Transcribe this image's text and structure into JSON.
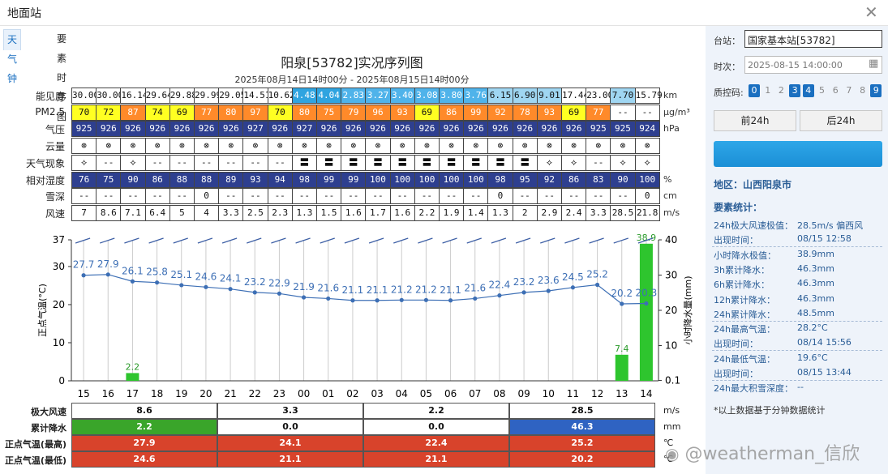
{
  "window": {
    "title": "地面站"
  },
  "tabs": [
    {
      "label": "天气钟"
    },
    {
      "label": "要素时序图"
    }
  ],
  "chart": {
    "title": "阳泉[53782]实况序列图",
    "subtitle": "2025年08月14日14时00分 - 2025年08月15日14时00分"
  },
  "rows": {
    "labels": [
      "能见度",
      "PM2.5",
      "气压",
      "云量",
      "天气现象",
      "相对湿度",
      "雪深",
      "风速"
    ],
    "units": [
      "km",
      "μg/m³",
      "hPa",
      "",
      "",
      "%",
      "cm",
      "m/s"
    ],
    "visibility": [
      "30.00",
      "30.00",
      "16.14",
      "29.64",
      "29.88",
      "29.99",
      "29.05",
      "14.51",
      "10.62",
      "4.48",
      "4.04",
      "2.83",
      "3.27",
      "3.40",
      "3.08",
      "3.80",
      "3.76",
      "6.15",
      "6.90",
      "9.01",
      "17.44",
      "23.00",
      "7.70",
      "15.79"
    ],
    "pm25": [
      "70",
      "72",
      "87",
      "74",
      "69",
      "77",
      "80",
      "97",
      "70",
      "80",
      "75",
      "79",
      "96",
      "93",
      "69",
      "86",
      "99",
      "92",
      "78",
      "93",
      "69",
      "77",
      "--",
      "--"
    ],
    "pressure": [
      "925",
      "926",
      "926",
      "926",
      "926",
      "926",
      "926",
      "927",
      "926",
      "927",
      "926",
      "926",
      "926",
      "926",
      "926",
      "926",
      "926",
      "926",
      "926",
      "926",
      "926",
      "925",
      "925",
      "924"
    ],
    "cloud": [
      "⊗",
      "⊗",
      "⊗",
      "⊗",
      "⊗",
      "⊗",
      "⊗",
      "⊗",
      "⊗",
      "⊗",
      "⊗",
      "⊗",
      "⊗",
      "⊗",
      "⊗",
      "⊗",
      "⊗",
      "⊗",
      "⊗",
      "⊗",
      "⊗",
      "⊗",
      "⊗",
      "⊗"
    ],
    "weather": [
      "⟡",
      "--",
      "⟡",
      "--",
      "--",
      "--",
      "--",
      "--",
      "--",
      "〓",
      "〓",
      "〓",
      "〓",
      "〓",
      "〓",
      "〓",
      "〓",
      "〓",
      "〓",
      "⟡",
      "⟡",
      "--",
      "⟡",
      "⟡"
    ],
    "humidity": [
      "76",
      "75",
      "90",
      "86",
      "88",
      "88",
      "89",
      "93",
      "94",
      "98",
      "99",
      "99",
      "100",
      "100",
      "100",
      "100",
      "100",
      "98",
      "95",
      "92",
      "86",
      "83",
      "90",
      "100"
    ],
    "snow": [
      "--",
      "--",
      "--",
      "--",
      "--",
      "0",
      "--",
      "--",
      "--",
      "--",
      "--",
      "--",
      "--",
      "--",
      "--",
      "--",
      "--",
      "0",
      "--",
      "--",
      "--",
      "--",
      "--",
      "0"
    ],
    "wind": [
      "7",
      "8.6",
      "7.1",
      "6.4",
      "5",
      "4",
      "3.3",
      "2.5",
      "2.3",
      "1.3",
      "1.5",
      "1.6",
      "1.7",
      "1.6",
      "2.2",
      "1.9",
      "1.4",
      "1.3",
      "2",
      "2.9",
      "2.4",
      "3.3",
      "28.5",
      "21.8"
    ]
  },
  "colors": {
    "vis_blue": "#2fa4e0",
    "vis_lightblue": "#9fd6f2",
    "pm_yellow": "#ffff22",
    "pm_orange": "#ff8a2a",
    "hum_dark": "#2e3f8f",
    "temp_line": "#3d6fb5",
    "rain_bar": "#2ec52e",
    "sum_green": "#3aa52a",
    "sum_blue": "#2f63c2",
    "sum_red": "#d8432b"
  },
  "chart_data": {
    "type": "line",
    "categories": [
      "15",
      "16",
      "17",
      "18",
      "19",
      "20",
      "21",
      "22",
      "23",
      "00",
      "01",
      "02",
      "03",
      "04",
      "05",
      "06",
      "07",
      "08",
      "09",
      "10",
      "11",
      "12",
      "13",
      "14"
    ],
    "series": [
      {
        "name": "正点气温(°C)",
        "values": [
          27.7,
          27.9,
          26.1,
          25.8,
          25.1,
          24.6,
          24.1,
          23.2,
          22.9,
          21.9,
          21.6,
          21.1,
          21.1,
          21.2,
          21.2,
          21.1,
          21.6,
          22.4,
          23.2,
          23.6,
          24.5,
          25.2,
          20.2,
          20.3
        ]
      },
      {
        "name": "小时降水量(mm)",
        "values": [
          null,
          null,
          2.2,
          null,
          null,
          null,
          null,
          null,
          null,
          null,
          null,
          null,
          null,
          null,
          null,
          null,
          null,
          null,
          null,
          null,
          null,
          null,
          7.4,
          38.9
        ]
      }
    ],
    "ylabel": "正点气温(°C)",
    "y2label": "小时降水量(mm)",
    "y_ticks": [
      "37",
      "30",
      "20",
      "10",
      "0"
    ],
    "y2_ticks": [
      "40",
      "30",
      "20",
      "10",
      "0.1"
    ],
    "top_axis_y": 37,
    "top_axis_y2": 40
  },
  "summary": {
    "labels": [
      "极大风速",
      "累计降水",
      "正点气温(最高)",
      "正点气温(最低)"
    ],
    "units": [
      "m/s",
      "mm",
      "℃",
      "℃"
    ],
    "rows": [
      [
        "8.6",
        "3.3",
        "2.2",
        "28.5"
      ],
      [
        "2.2",
        "0.0",
        "0.0",
        "46.3"
      ],
      [
        "27.9",
        "24.1",
        "22.4",
        "25.2"
      ],
      [
        "24.6",
        "21.1",
        "21.1",
        "20.2"
      ]
    ]
  },
  "side": {
    "station_label": "台站：",
    "station_value": "国家基本站[53782]",
    "time_label": "时次：",
    "time_value": "2025-08-15 14:00:00",
    "qc_label": "质控码:",
    "qc_codes": [
      "0",
      "1",
      "2",
      "3",
      "4",
      "5",
      "6",
      "7",
      "8",
      "9"
    ],
    "prev_btn": "前24h",
    "next_btn": "后24h",
    "region": "地区：山西阳泉市",
    "stats_title": "要素统计：",
    "stats": [
      [
        "24h极大风速极值：",
        "28.5m/s 偏西风"
      ],
      [
        "出现时间：",
        "08/15 12:58"
      ],
      [
        "小时降水极值：",
        "38.9mm"
      ],
      [
        "3h累计降水：",
        "46.3mm"
      ],
      [
        "6h累计降水：",
        "46.3mm"
      ],
      [
        "12h累计降水：",
        "46.3mm"
      ],
      [
        "24h累计降水：",
        "48.5mm"
      ],
      [
        "24h最高气温：",
        "28.2°C"
      ],
      [
        "出现时间：",
        "08/14 15:56"
      ],
      [
        "24h最低气温：",
        "19.6°C"
      ],
      [
        "出现时间：",
        "08/15 13:44"
      ],
      [
        "24h最大积雪深度：",
        "--"
      ]
    ],
    "footnote": "*以上数据基于分钟数据统计"
  },
  "watermark": "@weatherman_信欣"
}
